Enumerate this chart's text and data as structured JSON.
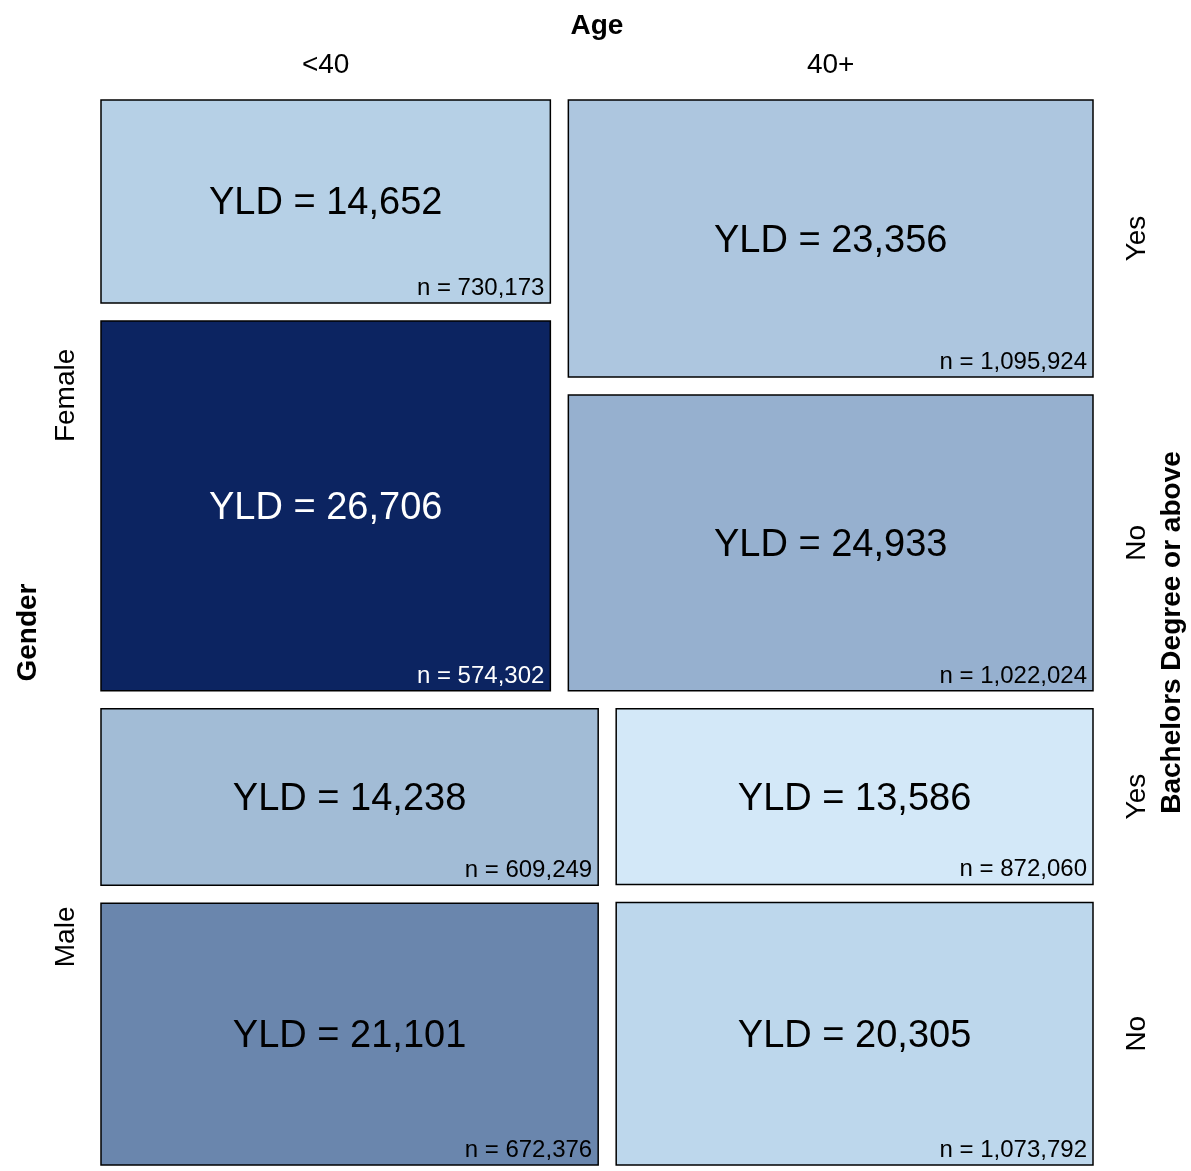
{
  "chart_data": {
    "type": "other",
    "xlabel": "Age",
    "ylabel": "Gender",
    "y2label": "Bachelors Degree or above",
    "categories": [
      "<40",
      "40+"
    ],
    "y_categories": [
      "Female",
      null,
      "Male",
      null
    ],
    "y2_categories": [
      "Yes",
      "No",
      "Yes",
      "No"
    ],
    "series": [
      {
        "values": [
          14652,
          23356
        ],
        "value_labels": [
          "YLD = 14,652",
          "YLD = 23,356"
        ],
        "colors": [
          "#b6d0e6",
          "#adc6df"
        ]
      },
      {
        "values": [
          26706,
          24933
        ],
        "value_labels": [
          "YLD = 26,706",
          "YLD = 24,933"
        ],
        "colors": [
          "#0c2461",
          "#96b0cf"
        ]
      },
      {
        "values": [
          14238,
          13586
        ],
        "value_labels": [
          "YLD = 14,238",
          "YLD = 13,586"
        ],
        "colors": [
          "#a2bcd6",
          "#d3e8f8"
        ]
      },
      {
        "values": [
          21101,
          20305
        ],
        "value_labels": [
          "YLD = 21,101",
          "YLD = 20,305"
        ],
        "colors": [
          "#6a86ad",
          "#bdd7ec"
        ]
      }
    ],
    "annotations": [
      "n = 730,173",
      "n = 1,095,924",
      "n = 574,302",
      "n = 1,022,024",
      "n = 609,249",
      "n = 872,060",
      "n = 672,376",
      "n = 1,073,792"
    ]
  }
}
